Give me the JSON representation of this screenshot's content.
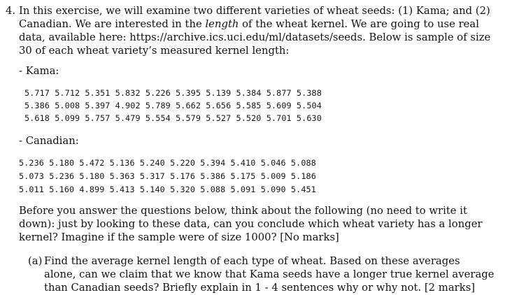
{
  "question": {
    "number": "4.",
    "intro_part1": "In this exercise, we will examine two different varieties of wheat seeds: (1) Kama; and (2) Canadian. We are interested in the ",
    "intro_emph": "length",
    "intro_part2": " of the wheat kernel. We are going to use real data, available here: https://archive.ics.uci.edu/ml/datasets/seeds. Below is sample of size 30 of each wheat variety’s measured kernel length:"
  },
  "kama": {
    "label": "- Kama:",
    "rows": [
      "5.717 5.712 5.351 5.832 5.226 5.395 5.139 5.384 5.877 5.388",
      "5.386 5.008 5.397 4.902 5.789 5.662 5.656 5.585 5.609 5.504",
      "5.618 5.099 5.757 5.479 5.554 5.579 5.527 5.520 5.701 5.630"
    ]
  },
  "canadian": {
    "label": "- Canadian:",
    "rows": [
      "5.236 5.180 5.472 5.136 5.240 5.220 5.394 5.410 5.046 5.088",
      "5.073 5.236 5.180 5.363 5.317 5.176 5.386 5.175 5.009 5.186",
      "5.011 5.160 4.899 5.413 5.140 5.320 5.088 5.091 5.090 5.451"
    ]
  },
  "think": "Before you answer the questions below, think about the following (no need to write it down): just by looking to these data, can you conclude which wheat variety has a longer kernel? Imagine if the sample were of size 1000? [No marks]",
  "part_a": {
    "label": "(a)",
    "text": "Find the average kernel length of each type of wheat. Based on these averages alone, can we claim that we know that Kama seeds have a longer true kernel average than Canadian seeds? Briefly explain in 1 - 4 sentences why or why not. [2 marks]"
  }
}
